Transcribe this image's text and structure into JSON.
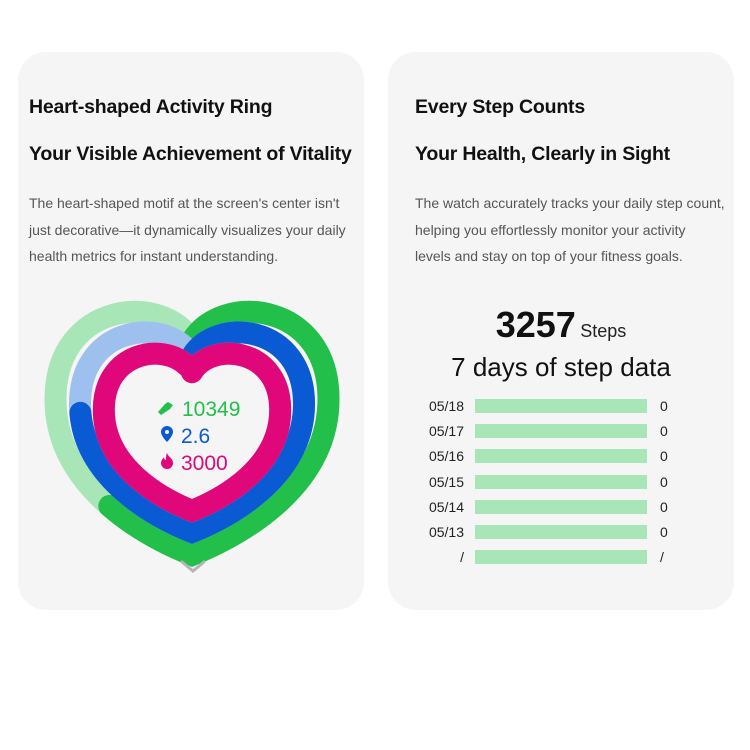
{
  "left_card": {
    "title": "Heart-shaped Activity Ring",
    "subtitle": "Your Visible Achievement of Vitality",
    "description": "The heart-shaped motif at the screen's center isn't just decorative—it dynamically visualizes your daily health metrics for instant understanding.",
    "rings": [
      {
        "metric": "steps",
        "value": "10349",
        "icon": "shoe-icon",
        "color": "#22c04a",
        "track": "#a8e6b8",
        "progress": 0.6
      },
      {
        "metric": "distance",
        "value": "2.6",
        "icon": "location-pin-icon",
        "color": "#0a5ad4",
        "track": "#9dc0ee",
        "progress": 0.6
      },
      {
        "metric": "calories",
        "value": "3000",
        "icon": "flame-icon",
        "color": "#e0077a",
        "track": "#f3a3c9",
        "progress": 0.62
      }
    ]
  },
  "right_card": {
    "title": "Every Step Counts",
    "subtitle": "Your Health, Clearly in Sight",
    "description": "The watch accurately tracks your daily step count, helping you effortlessly monitor your activity levels and stay on top of your fitness goals.",
    "steps_value": "3257",
    "steps_unit": "Steps",
    "chart_title": "7 days of step data",
    "chart_data": {
      "type": "bar",
      "categories": [
        "05/18",
        "05/17",
        "05/16",
        "05/15",
        "05/14",
        "05/13",
        "/"
      ],
      "value_labels": [
        "0",
        "0",
        "0",
        "0",
        "0",
        "0",
        "/"
      ],
      "bar_color": "#a8e6b8"
    }
  }
}
